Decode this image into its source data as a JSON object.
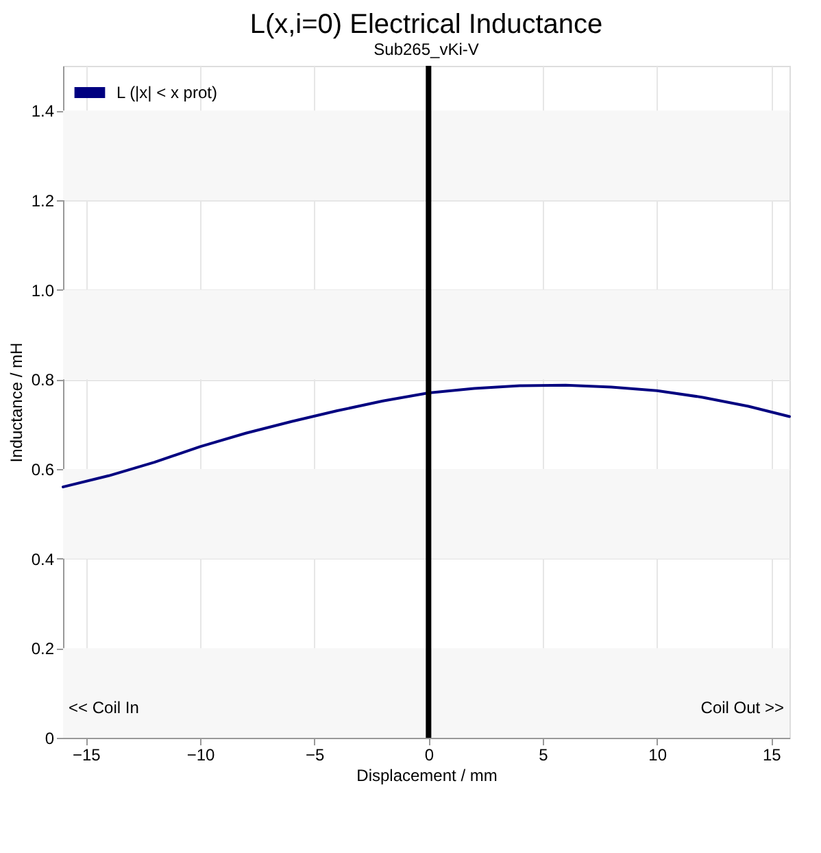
{
  "chart_data": {
    "type": "line",
    "title": "L(x,i=0) Electrical Inductance",
    "subtitle": "Sub265_vKi-V",
    "xlabel": "Displacement / mm",
    "ylabel": "Inductance / mH",
    "x": [
      -16,
      -14,
      -12,
      -10,
      -8,
      -6,
      -4,
      -2,
      0,
      2,
      4,
      6,
      8,
      10,
      12,
      14,
      15.8
    ],
    "series": [
      {
        "name": "L (|x| < x prot)",
        "color": "#000080",
        "values": [
          0.56,
          0.585,
          0.615,
          0.65,
          0.68,
          0.706,
          0.73,
          0.752,
          0.77,
          0.78,
          0.786,
          0.787,
          0.783,
          0.775,
          0.76,
          0.74,
          0.717
        ]
      }
    ],
    "xlim": [
      -16,
      15.8
    ],
    "xticks": [
      -15,
      -10,
      -5,
      0,
      5,
      10,
      15
    ],
    "ylim": [
      0,
      1.5
    ],
    "yticks": [
      0,
      0.2,
      0.4,
      0.6,
      0.8,
      {
        "value": 1,
        "label": "1.0"
      },
      1.2,
      1.4
    ],
    "grid": true,
    "legend": "top left",
    "marker": "none",
    "line_style": "solid",
    "ref_lines": [
      {
        "axis": "x",
        "value": 0,
        "color": "#000000"
      }
    ],
    "bands": [
      {
        "axis": "y",
        "from": 0,
        "to": 0.2,
        "color": "#f7f7f7"
      },
      {
        "axis": "y",
        "from": 0.4,
        "to": 0.6,
        "color": "#f7f7f7"
      },
      {
        "axis": "y",
        "from": 0.8,
        "to": 1.0,
        "color": "#f7f7f7"
      },
      {
        "axis": "y",
        "from": 1.2,
        "to": 1.4,
        "color": "#f7f7f7"
      }
    ],
    "annotations": [
      "<< Coil In",
      "Coil Out >>"
    ]
  }
}
